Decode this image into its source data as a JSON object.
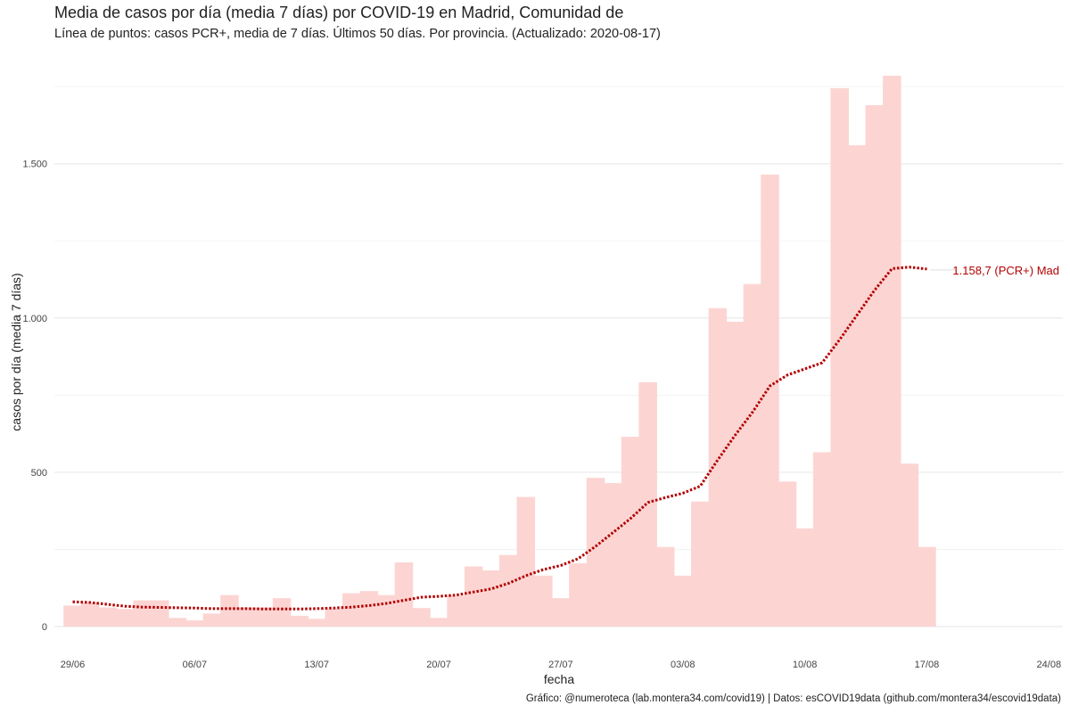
{
  "chart_data": {
    "type": "bar",
    "title": "Media de casos por día (media 7 días) por COVID-19 en Madrid, Comunidad de",
    "subtitle": "Línea de puntos: casos PCR+, media de 7 días. Últimos 50 días. Por provincia. (Actualizado: 2020-08-17)",
    "xlabel": "fecha",
    "ylabel": "casos por día (media 7 días)",
    "caption": "Gráfico: @numeroteca (lab.montera34.com/covid19) | Datos: esCOVID19data (github.com/montera34/escovid19data)",
    "x_start": "2020-06-28",
    "xlim": [
      "2020-06-28",
      "2020-08-24"
    ],
    "ylim": [
      0,
      1780
    ],
    "grid": true,
    "legend": "none",
    "x_ticks": [
      "29/06",
      "06/07",
      "13/07",
      "20/07",
      "27/07",
      "03/08",
      "10/08",
      "17/08",
      "24/08"
    ],
    "y_ticks": [
      {
        "value": 0,
        "label": "0"
      },
      {
        "value": 500,
        "label": "500"
      },
      {
        "value": 1000,
        "label": "1.000"
      },
      {
        "value": 1500,
        "label": "1.500"
      }
    ],
    "series": [
      {
        "type": "bar",
        "color": "#fcd5d3",
        "values": [
          68,
          78,
          62,
          57,
          85,
          85,
          28,
          20,
          42,
          102,
          62,
          62,
          92,
          35,
          25,
          58,
          108,
          115,
          102,
          208,
          60,
          28,
          100,
          195,
          182,
          232,
          420,
          165,
          92,
          205,
          482,
          465,
          615,
          792,
          258,
          165,
          405,
          1032,
          988,
          1110,
          1465,
          470,
          318,
          565,
          1745,
          1560,
          1690,
          1785,
          528,
          258
        ]
      },
      {
        "type": "line",
        "style": "dotted",
        "color": "#b30000",
        "label": "1.158,7 (PCR+) Mad",
        "values": [
          80,
          78,
          72,
          66,
          63,
          62,
          61,
          60,
          58,
          58,
          58,
          57,
          57,
          57,
          58,
          60,
          63,
          68,
          75,
          85,
          95,
          98,
          102,
          112,
          122,
          140,
          165,
          185,
          198,
          220,
          260,
          305,
          350,
          402,
          418,
          432,
          455,
          540,
          620,
          695,
          780,
          815,
          835,
          855,
          930,
          1010,
          1090,
          1160,
          1165,
          1158.7
        ]
      }
    ]
  }
}
